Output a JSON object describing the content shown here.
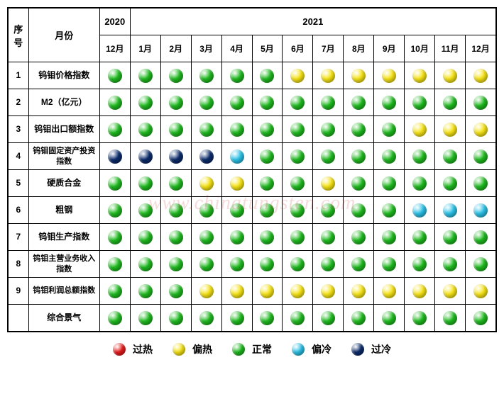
{
  "colors": {
    "red": "#e81c1c",
    "yellow": "#f7e416",
    "green": "#1fbb1f",
    "cyan": "#2bc2e8",
    "navy": "#0b2b6b",
    "border": "#000000",
    "background": "#ffffff"
  },
  "headers": {
    "seq": "序号",
    "month": "月份",
    "year2020": "2020",
    "year2021": "2021",
    "months": [
      "12月",
      "1月",
      "2月",
      "3月",
      "4月",
      "5月",
      "6月",
      "7月",
      "8月",
      "9月",
      "10月",
      "11月",
      "12月"
    ]
  },
  "legend": [
    {
      "color": "red",
      "label": "过热"
    },
    {
      "color": "yellow",
      "label": "偏热"
    },
    {
      "color": "green",
      "label": "正常"
    },
    {
      "color": "cyan",
      "label": "偏冷"
    },
    {
      "color": "navy",
      "label": "过冷"
    }
  ],
  "rows": [
    {
      "seq": "1",
      "name": "钨钼价格指数",
      "values": [
        "green",
        "green",
        "green",
        "green",
        "green",
        "green",
        "yellow",
        "yellow",
        "yellow",
        "yellow",
        "yellow",
        "yellow",
        "yellow"
      ]
    },
    {
      "seq": "2",
      "name": "M2（亿元）",
      "values": [
        "green",
        "green",
        "green",
        "green",
        "green",
        "green",
        "green",
        "green",
        "green",
        "green",
        "green",
        "green",
        "green"
      ]
    },
    {
      "seq": "3",
      "name": "钨钼出口额指数",
      "values": [
        "green",
        "green",
        "green",
        "green",
        "green",
        "green",
        "green",
        "green",
        "green",
        "green",
        "yellow",
        "yellow",
        "yellow"
      ]
    },
    {
      "seq": "4",
      "name": "钨钼固定资产投资指数",
      "values": [
        "navy",
        "navy",
        "navy",
        "navy",
        "cyan",
        "green",
        "green",
        "green",
        "green",
        "green",
        "green",
        "green",
        "green"
      ]
    },
    {
      "seq": "5",
      "name": "硬质合金",
      "values": [
        "green",
        "green",
        "green",
        "yellow",
        "yellow",
        "green",
        "green",
        "yellow",
        "green",
        "green",
        "green",
        "green",
        "green"
      ]
    },
    {
      "seq": "6",
      "name": "粗钢",
      "values": [
        "green",
        "green",
        "green",
        "green",
        "green",
        "green",
        "green",
        "green",
        "green",
        "green",
        "cyan",
        "cyan",
        "cyan"
      ]
    },
    {
      "seq": "7",
      "name": "钨钼生产指数",
      "values": [
        "green",
        "green",
        "green",
        "green",
        "green",
        "green",
        "green",
        "green",
        "green",
        "green",
        "green",
        "green",
        "green"
      ]
    },
    {
      "seq": "8",
      "name": "钨钼主营业务收入指数",
      "values": [
        "green",
        "green",
        "green",
        "green",
        "green",
        "green",
        "green",
        "green",
        "green",
        "green",
        "green",
        "green",
        "green"
      ]
    },
    {
      "seq": "9",
      "name": "钨钼利润总额指数",
      "values": [
        "green",
        "green",
        "green",
        "yellow",
        "yellow",
        "yellow",
        "yellow",
        "yellow",
        "yellow",
        "yellow",
        "yellow",
        "yellow",
        "yellow"
      ]
    },
    {
      "seq": "",
      "name": "综合景气",
      "values": [
        "green",
        "green",
        "green",
        "green",
        "green",
        "green",
        "green",
        "green",
        "green",
        "green",
        "green",
        "green",
        "green"
      ]
    }
  ],
  "watermark": "www.chinatungsten.com"
}
